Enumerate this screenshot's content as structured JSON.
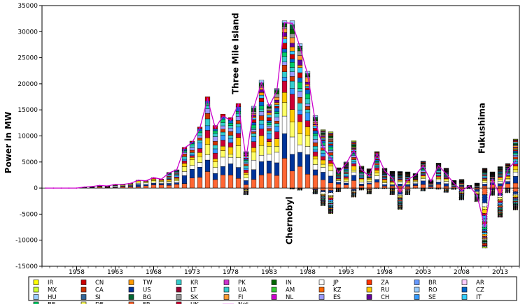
{
  "chart_data": {
    "type": "bar",
    "ylabel": "Power in MW",
    "ylim": [
      -15000,
      35000
    ],
    "yticks": [
      -15000,
      -10000,
      -5000,
      0,
      5000,
      10000,
      15000,
      20000,
      25000,
      30000,
      35000
    ],
    "xticks": [
      "1958",
      "1963",
      "1968",
      "1973",
      "1978",
      "1983",
      "1988",
      "1993",
      "1998",
      "2003",
      "2008",
      "2013"
    ],
    "xticks_years": [
      1958,
      1963,
      1968,
      1973,
      1978,
      1983,
      1988,
      1993,
      1998,
      2003,
      2008,
      2013
    ],
    "year_start": 1954,
    "year_end": 2015,
    "annotations": [
      {
        "text": "Three Mile Island",
        "year": 1979
      },
      {
        "text": "Chernobyl",
        "year": 1986
      },
      {
        "text": "Fukushima",
        "year": 2011
      }
    ],
    "legend_columns": 10,
    "legend": [
      {
        "code": "IR",
        "color": "#ffff00"
      },
      {
        "code": "CN",
        "color": "#cc0000"
      },
      {
        "code": "TW",
        "color": "#ff9900"
      },
      {
        "code": "KR",
        "color": "#33cccc"
      },
      {
        "code": "PK",
        "color": "#cc33cc"
      },
      {
        "code": "IN",
        "color": "#006600"
      },
      {
        "code": "JP",
        "color": "#ffffff"
      },
      {
        "code": "ZA",
        "color": "#ff3300"
      },
      {
        "code": "BR",
        "color": "#6699ff"
      },
      {
        "code": "AR",
        "color": "#ffccff"
      },
      {
        "code": "MX",
        "color": "#ccff33"
      },
      {
        "code": "CA",
        "color": "#cc3300"
      },
      {
        "code": "US",
        "color": "#003399"
      },
      {
        "code": "LT",
        "color": "#990033"
      },
      {
        "code": "UA",
        "color": "#33cccc"
      },
      {
        "code": "AM",
        "color": "#33cc33"
      },
      {
        "code": "KZ",
        "color": "#ff6600"
      },
      {
        "code": "RU",
        "color": "#ffcc00"
      },
      {
        "code": "RO",
        "color": "#99ccff"
      },
      {
        "code": "CZ",
        "color": "#0066cc"
      },
      {
        "code": "HU",
        "color": "#99ccff"
      },
      {
        "code": "SI",
        "color": "#336699"
      },
      {
        "code": "BG",
        "color": "#006633"
      },
      {
        "code": "SK",
        "color": "#999999"
      },
      {
        "code": "FI",
        "color": "#ff9933"
      },
      {
        "code": "NL",
        "color": "#cc00cc"
      },
      {
        "code": "ES",
        "color": "#9999ff"
      },
      {
        "code": "CH",
        "color": "#660099"
      },
      {
        "code": "SE",
        "color": "#3399ff"
      },
      {
        "code": "IT",
        "color": "#33ccff"
      },
      {
        "code": "BE",
        "color": "#00cc66"
      },
      {
        "code": "DE",
        "color": "#ffff66"
      },
      {
        "code": "FR",
        "color": "#ff6633"
      },
      {
        "code": "UK",
        "color": "#cc0033"
      },
      {
        "code": "Net",
        "color": "#cc00cc",
        "line": true
      }
    ],
    "series_order": [
      "FR",
      "US",
      "JP",
      "DE",
      "RU",
      "UK",
      "SE",
      "KR",
      "CA",
      "ES",
      "UA",
      "BE",
      "CZ",
      "CN",
      "IT",
      "TW",
      "CH",
      "FI",
      "SK",
      "IN",
      "BG",
      "HU",
      "ZA",
      "LT",
      "BR",
      "MX",
      "AR",
      "SI",
      "RO",
      "AM",
      "KZ",
      "NL",
      "PK",
      "IR"
    ],
    "colors": {
      "FR": "#ff6633",
      "US": "#003399",
      "JP": "#ffffff",
      "DE": "#ffff66",
      "RU": "#ffcc00",
      "UK": "#cc0033",
      "SE": "#3399ff",
      "KR": "#33cccc",
      "CA": "#cc3300",
      "ES": "#9999ff",
      "UA": "#33cccc",
      "BE": "#00cc66",
      "CZ": "#0066cc",
      "CN": "#cc0000",
      "IT": "#33ccff",
      "TW": "#ff9900",
      "CH": "#660099",
      "FI": "#ff9933",
      "SK": "#999999",
      "IN": "#006600",
      "BG": "#006633",
      "HU": "#99ccff",
      "ZA": "#ff3300",
      "LT": "#990033",
      "BR": "#6699ff",
      "MX": "#ccff33",
      "AR": "#ffccff",
      "SI": "#336699",
      "RO": "#99ccff",
      "AM": "#33cc33",
      "KZ": "#ff6600",
      "NL": "#cc00cc",
      "PK": "#cc33cc",
      "IR": "#ffff00"
    },
    "pos_totals": [
      0,
      0,
      0,
      0,
      0,
      200,
      300,
      500,
      400,
      700,
      700,
      900,
      1500,
      1400,
      2000,
      1700,
      3000,
      3500,
      7800,
      9000,
      11700,
      17500,
      12000,
      14200,
      13500,
      16200,
      7000,
      15700,
      20700,
      16000,
      19100,
      32100,
      32100,
      27700,
      22400,
      13900,
      11200,
      10800,
      3900,
      5000,
      9100,
      4200,
      3700,
      7000,
      3800,
      3200,
      3200,
      3100,
      2800,
      5200,
      1600,
      4800,
      3800,
      1500,
      1700,
      700,
      1100,
      3800,
      3100,
      4100,
      4700,
      9400
    ],
    "neg_totals": [
      0,
      0,
      0,
      0,
      0,
      0,
      0,
      0,
      0,
      0,
      0,
      0,
      0,
      0,
      0,
      0,
      0,
      0,
      0,
      0,
      0,
      0,
      0,
      0,
      0,
      0,
      -1300,
      0,
      0,
      0,
      0,
      0,
      -400,
      -600,
      0,
      -1200,
      -3400,
      -4900,
      -900,
      -200,
      -1800,
      -600,
      -1300,
      -300,
      -300,
      -1300,
      -4100,
      -1400,
      -300,
      -800,
      -300,
      -400,
      -1000,
      -500,
      -2300,
      -300,
      -2600,
      -11500,
      -1400,
      -5600,
      -1000,
      -4200
    ],
    "net": [
      0,
      0,
      0,
      0,
      0,
      200,
      300,
      500,
      400,
      700,
      700,
      900,
      1500,
      1400,
      2000,
      1700,
      2900,
      3500,
      7700,
      8700,
      11500,
      17100,
      11500,
      13800,
      13000,
      16000,
      5700,
      15400,
      20200,
      15700,
      18600,
      31700,
      31600,
      27100,
      21800,
      12700,
      7800,
      5800,
      2900,
      4700,
      7300,
      3500,
      2300,
      6600,
      3300,
      1900,
      -800,
      1600,
      2500,
      4300,
      1300,
      4300,
      2700,
      900,
      -500,
      400,
      -1400,
      -7400,
      1600,
      -1400,
      3600,
      5200
    ]
  }
}
